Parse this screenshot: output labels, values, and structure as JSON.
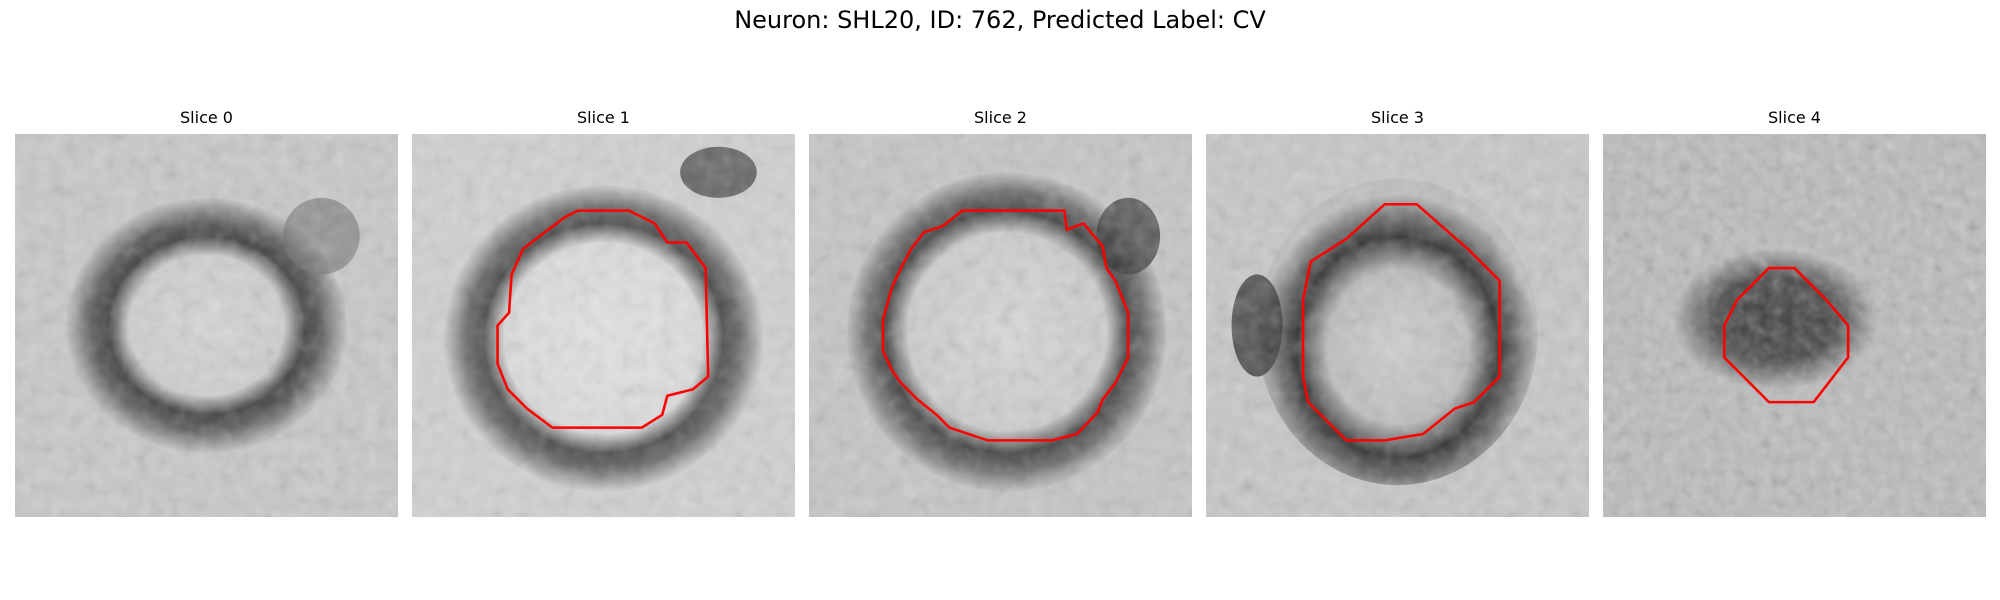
{
  "figure": {
    "title": "Neuron: SHL20, ID: 762, Predicted Label: CV"
  },
  "panels": [
    {
      "title": "Slice 0",
      "contour": false
    },
    {
      "title": "Slice 1",
      "contour": true
    },
    {
      "title": "Slice 2",
      "contour": true
    },
    {
      "title": "Slice 3",
      "contour": true
    },
    {
      "title": "Slice 4",
      "contour": true
    }
  ],
  "colors": {
    "contour": "#ff0000",
    "background": "#ffffff"
  }
}
